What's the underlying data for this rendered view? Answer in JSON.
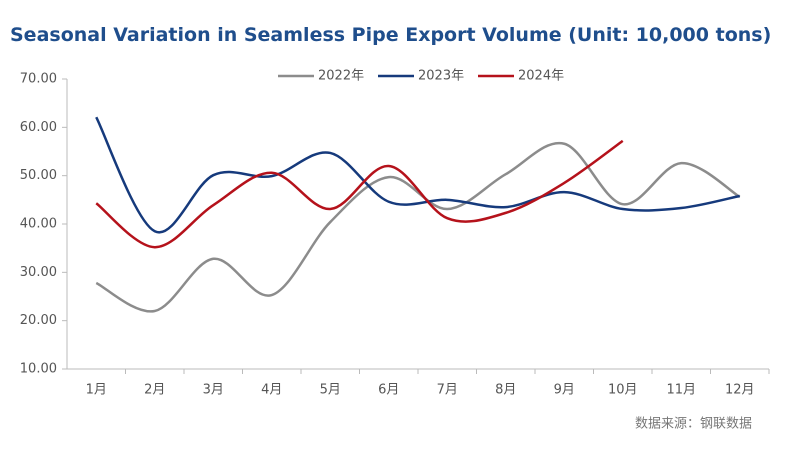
{
  "chart_data": {
    "type": "line",
    "title": "Seasonal Variation in Seamless Pipe Export Volume (Unit: 10,000 tons)",
    "categories": [
      "1月",
      "2月",
      "3月",
      "4月",
      "5月",
      "6月",
      "7月",
      "8月",
      "9月",
      "10月",
      "11月",
      "12月"
    ],
    "series": [
      {
        "name": "2022年",
        "color": "#8c8c8c",
        "values": [
          27.8,
          22,
          32.8,
          25.3,
          40.4,
          49.7,
          43.1,
          50.3,
          56.6,
          44.1,
          52.6,
          45.6
        ]
      },
      {
        "name": "2023年",
        "color": "#163a7c",
        "values": [
          62.1,
          38.5,
          50.1,
          49.9,
          54.7,
          44.6,
          45,
          43.5,
          46.6,
          43.1,
          43.3,
          45.8
        ]
      },
      {
        "name": "2024年",
        "color": "#b5121b",
        "values": [
          44.3,
          35.2,
          43.9,
          50.6,
          43.1,
          52,
          41.2,
          42.3,
          48.5,
          57.2,
          null,
          null
        ]
      }
    ],
    "ylim": [
      10,
      70
    ],
    "yticks": [
      {
        "value": 10,
        "label": "10.00"
      },
      {
        "value": 20,
        "label": "20.00"
      },
      {
        "value": 30,
        "label": "30.00"
      },
      {
        "value": 40,
        "label": "40.00"
      },
      {
        "value": 50,
        "label": "50.00"
      },
      {
        "value": 60,
        "label": "60.00"
      },
      {
        "value": 70,
        "label": "70.00"
      }
    ],
    "grid": false,
    "legend": "top",
    "source": "数据来源：钢联数据"
  }
}
